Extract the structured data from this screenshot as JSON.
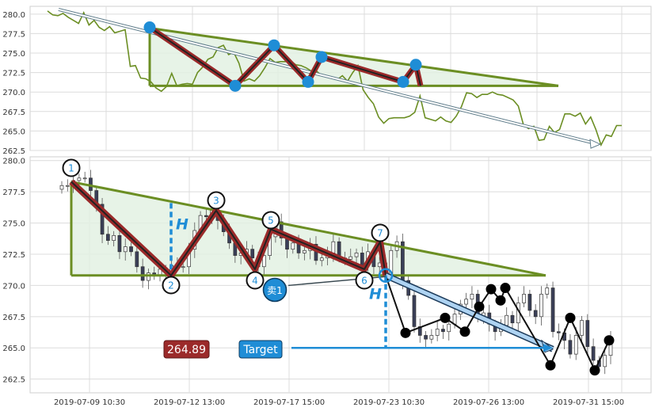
{
  "chart_data": [
    {
      "type": "line",
      "panel": "top",
      "ylim": [
        262.5,
        281.0
      ],
      "y_ticks": [
        "280.0",
        "277.5",
        "275.0",
        "272.5",
        "270.0",
        "267.5",
        "265.0",
        "262.5"
      ],
      "grid": true,
      "colors": {
        "line": "#6b8e23",
        "triangle": "#6b8e23",
        "fill": "#e3f1e3",
        "wave_outer": "#9b2a2a",
        "wave_inner": "#222222",
        "pivot": "#1f8dd6",
        "trend": "#607d8b"
      },
      "series": [
        {
          "values": [
            280.4,
            279.9,
            279.8,
            280.1,
            279.6,
            279.2,
            278.8,
            280.2,
            278.6,
            279.2,
            278.3,
            277.9,
            278.4,
            277.6,
            277.8,
            278.0,
            273.3,
            273.4,
            271.8,
            271.7,
            271.3,
            270.5,
            270.1,
            270.7,
            272.4,
            270.8,
            271.0,
            271.1,
            271.0,
            272.5,
            273.2,
            274.2,
            274.5,
            275.7,
            276.0,
            274.8,
            275.1,
            273.7,
            271.4,
            271.7,
            271.4,
            272.1,
            273.1,
            274.3,
            273.8,
            273.9,
            273.9,
            274.0,
            273.5,
            273.4,
            273.1,
            272.7,
            272.7,
            272.1,
            272.0,
            271.8,
            271.6,
            272.1,
            271.4,
            272.5,
            273.4,
            270.3,
            269.3,
            268.5,
            266.8,
            266.0,
            266.6,
            266.7,
            266.7,
            266.7,
            266.9,
            267.4,
            269.5,
            266.7,
            266.5,
            266.3,
            266.8,
            266.3,
            266.1,
            266.9,
            268.1,
            269.9,
            269.8,
            269.3,
            269.7,
            269.7,
            270.0,
            269.7,
            269.6,
            269.3,
            269.0,
            268.2,
            265.8,
            265.3,
            265.6,
            263.8,
            263.9,
            265.6,
            264.8,
            265.2,
            267.2,
            267.2,
            266.9,
            267.3,
            265.9,
            266.8,
            265.2,
            263.2,
            264.5,
            264.3,
            265.7,
            265.7
          ]
        }
      ],
      "trend": {
        "start": 280.6,
        "end": 263.4
      },
      "triangle": {
        "top": 278.2,
        "bottom": 270.8
      },
      "wave_points": [
        278.3,
        270.8,
        276.0,
        271.3,
        274.5,
        271.3,
        273.5,
        270.8
      ],
      "annotations": []
    },
    {
      "type": "candlestick",
      "panel": "bottom",
      "ylim": [
        261.4,
        280.3
      ],
      "y_ticks": [
        "280.0",
        "277.5",
        "275.0",
        "272.5",
        "270.0",
        "267.5",
        "265.0",
        "262.5"
      ],
      "x_ticks": [
        "2019-07-09 10:30",
        "2019-07-12 13:00",
        "2019-07-17 15:00",
        "2019-07-23 10:30",
        "2019-07-26 13:00",
        "2019-07-31 15:00"
      ],
      "grid": true,
      "colors": {
        "up": "#ffffff",
        "down": "#3a3f58",
        "triangle": "#6b8e23",
        "fill": "#e3f1e3",
        "wave_outer": "#9b2a2a",
        "wave_inner": "#222222",
        "projection": "#1f8dd6",
        "measure": "#1f8dd6",
        "price_box": "#9b2a2a",
        "target_box": "#1f8dd6"
      },
      "closes": [
        278.0,
        278.0,
        278.4,
        278.6,
        278.6,
        277.6,
        276.5,
        274.1,
        273.6,
        274.0,
        272.7,
        273.1,
        272.7,
        271.5,
        270.4,
        271.0,
        270.8,
        271.3,
        271.0,
        271.6,
        271.5,
        271.5,
        272.9,
        274.4,
        275.6,
        275.5,
        276.0,
        275.2,
        274.3,
        273.4,
        272.4,
        272.6,
        272.9,
        272.2,
        271.5,
        272.4,
        273.9,
        275.1,
        273.8,
        272.9,
        273.4,
        272.6,
        272.8,
        273.3,
        272.0,
        272.2,
        272.6,
        273.5,
        272.2,
        272.1,
        272.3,
        272.6,
        271.6,
        272.7,
        271.5,
        271.8,
        270.9,
        272.8,
        273.5,
        270.4,
        269.2,
        266.7,
        266.0,
        265.7,
        266.0,
        266.5,
        266.3,
        266.9,
        267.7,
        268.5,
        268.9,
        269.3,
        267.4,
        267.8,
        266.9,
        266.3,
        266.8,
        267.6,
        267.0,
        268.6,
        269.3,
        268.0,
        267.5,
        269.3,
        269.8,
        266.3,
        266.2,
        265.6,
        264.5,
        266.0,
        267.2,
        265.1,
        264.0,
        263.5,
        264.4,
        265.7
      ],
      "triangle": {
        "top": 278.3,
        "bottom": 270.8,
        "apex_y": 270.8
      },
      "wave_points": [
        {
          "label": "1",
          "value": 278.3
        },
        {
          "label": "2",
          "value": 270.8
        },
        {
          "label": "3",
          "value": 276.0
        },
        {
          "label": "4",
          "value": 271.3
        },
        {
          "label": "5",
          "value": 274.5
        },
        {
          "label": "6",
          "value": 271.3
        },
        {
          "label": "7",
          "value": 273.5
        },
        {
          "label": "",
          "value": 270.8
        }
      ],
      "projection_points": [
        270.8,
        266.2,
        267.4,
        266.3,
        268.3,
        269.7,
        268.8,
        269.8,
        263.6,
        267.4,
        263.2,
        265.6
      ],
      "projection_line": {
        "start": 270.8,
        "end": 264.9
      },
      "measure_label": "H",
      "sell_label": "卖1",
      "price_label": "264.89",
      "target_label": "Target"
    }
  ]
}
